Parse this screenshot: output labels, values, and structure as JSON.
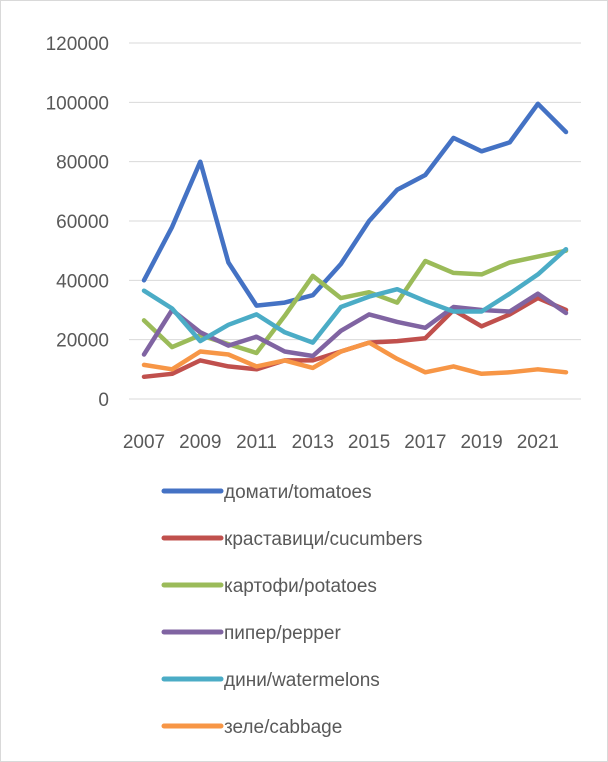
{
  "chart_data": {
    "type": "line",
    "title": "",
    "xlabel": "",
    "ylabel": "",
    "x": [
      2007,
      2008,
      2009,
      2010,
      2011,
      2012,
      2013,
      2014,
      2015,
      2016,
      2017,
      2018,
      2019,
      2020,
      2021,
      2022
    ],
    "x_tick_labels": [
      "2007",
      "2009",
      "2011",
      "2013",
      "2015",
      "2017",
      "2019",
      "2021"
    ],
    "y_tick_labels": [
      "0",
      "20000",
      "40000",
      "60000",
      "80000",
      "100000",
      "120000"
    ],
    "ylim": [
      0,
      120000
    ],
    "grid": "horizontal",
    "legend_position": "bottom",
    "series": [
      {
        "name": "домати/tomatoes",
        "color": "#4472C4",
        "values": [
          40000,
          58000,
          80000,
          46000,
          31500,
          32500,
          35000,
          45500,
          60000,
          70500,
          75500,
          88000,
          83500,
          86500,
          99500,
          90000
        ]
      },
      {
        "name": "краставици/cucumbers",
        "color": "#C0504D",
        "values": [
          7500,
          8500,
          13000,
          11000,
          10000,
          13000,
          13000,
          16000,
          19000,
          19500,
          20500,
          30000,
          24500,
          28500,
          34000,
          30000
        ]
      },
      {
        "name": "картофи/potatoes",
        "color": "#9BBB59",
        "values": [
          26500,
          17500,
          21500,
          18500,
          15500,
          28000,
          41500,
          34000,
          36000,
          32500,
          46500,
          42500,
          42000,
          46000,
          48000,
          50000
        ]
      },
      {
        "name": "пипер/pepper",
        "color": "#8064A2",
        "values": [
          15000,
          30000,
          22500,
          18000,
          21000,
          16000,
          14500,
          23000,
          28500,
          26000,
          24000,
          31000,
          30000,
          29500,
          35500,
          29000
        ]
      },
      {
        "name": "дини/watermelons",
        "color": "#4BACC6",
        "values": [
          36500,
          30500,
          19500,
          25000,
          28500,
          22500,
          19000,
          31000,
          34500,
          37000,
          33000,
          29500,
          29500,
          35500,
          42000,
          50500
        ]
      },
      {
        "name": "зеле/cabbage",
        "color": "#F79646",
        "values": [
          11500,
          10000,
          16000,
          15000,
          11000,
          13000,
          10500,
          16000,
          19000,
          13500,
          9000,
          11000,
          8500,
          9000,
          10000,
          9000
        ]
      }
    ]
  }
}
